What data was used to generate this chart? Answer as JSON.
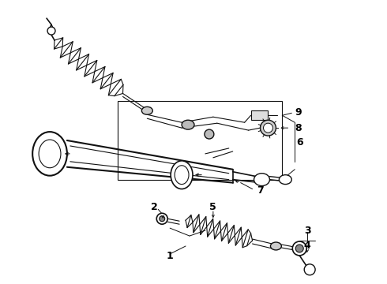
{
  "background_color": "#ffffff",
  "line_color": "#111111",
  "label_color": "#000000",
  "fig_width": 4.9,
  "fig_height": 3.6,
  "dpi": 100
}
